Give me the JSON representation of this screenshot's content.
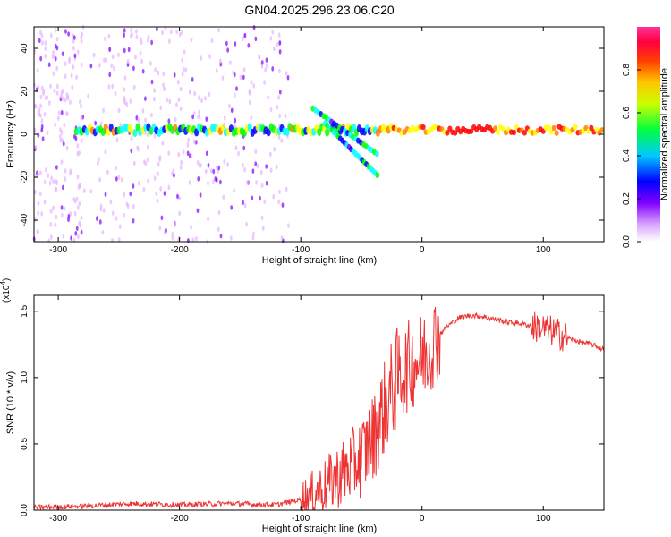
{
  "title": "GN04.2025.296.23.06.C20",
  "chart_data": [
    {
      "type": "heatmap",
      "xlabel": "Height of straight line (km)",
      "ylabel": "Frequency (Hz)",
      "xlim": [
        -320,
        150
      ],
      "ylim": [
        -50,
        50
      ],
      "xticks": [
        -300,
        -200,
        -100,
        0,
        100
      ],
      "xtick_labels": [
        "-300",
        "-200",
        "-100",
        "0",
        "100"
      ],
      "yticks": [
        -40,
        -20,
        0,
        20,
        40
      ],
      "ytick_labels": [
        "-40",
        "-20",
        "0",
        "20",
        "40"
      ],
      "colorbar": {
        "label": "Normalized spectral amplitude",
        "range": [
          0,
          1
        ],
        "ticks": [
          0,
          0.2,
          0.4,
          0.6,
          0.8
        ],
        "tick_labels": [
          "0.0",
          "0.2",
          "0.4",
          "0.6",
          "0.8"
        ],
        "colormap": [
          "#ffffff",
          "#e6b3ff",
          "#8000ff",
          "#0000ff",
          "#00ffff",
          "#00ff00",
          "#ffff00",
          "#ff8000",
          "#ff0000",
          "#ff0080"
        ]
      },
      "features": [
        {
          "name": "main band",
          "x": [
            -285,
            150
          ],
          "freq": 2
        },
        {
          "name": "descending branch 1",
          "x": [
            -90,
            -35
          ],
          "freq": [
            12,
            -10
          ]
        },
        {
          "name": "descending branch 2",
          "x": [
            -80,
            -35
          ],
          "freq": [
            5,
            -20
          ]
        },
        {
          "name": "peak region",
          "x": [
            -30,
            150
          ],
          "freq": [
            1,
            4
          ]
        }
      ]
    },
    {
      "type": "line",
      "xlabel": "Height of straight line (km)",
      "ylabel": "SNR (10 * v/v)",
      "y_multiplier": "(x10",
      "y_multiplier_exp": "4",
      "xlim": [
        -320,
        150
      ],
      "ylim": [
        0,
        1.62
      ],
      "xticks": [
        -300,
        -200,
        -100,
        0,
        100
      ],
      "xtick_labels": [
        "-300",
        "-200",
        "-100",
        "0",
        "100"
      ],
      "yticks": [
        0,
        0.5,
        1.0,
        1.5
      ],
      "ytick_labels": [
        "0.0",
        "0.5",
        "1.0",
        "1.5"
      ],
      "color": "#ee3333",
      "series": [
        {
          "x": [
            -320,
            -280,
            -240,
            -200,
            -160,
            -120,
            -100,
            -90,
            -80,
            -70,
            -60,
            -50,
            -40,
            -30,
            -20,
            -10,
            0,
            10,
            20,
            30,
            40,
            50,
            60,
            70,
            80,
            90,
            100,
            110,
            120,
            130,
            140,
            150
          ],
          "values": [
            0.02,
            0.03,
            0.05,
            0.04,
            0.05,
            0.04,
            0.08,
            0.12,
            0.18,
            0.25,
            0.32,
            0.4,
            0.55,
            0.8,
            1.0,
            1.1,
            1.15,
            1.28,
            1.38,
            1.45,
            1.47,
            1.46,
            1.44,
            1.42,
            1.41,
            1.39,
            1.37,
            1.34,
            1.3,
            1.27,
            1.25,
            1.21
          ]
        }
      ]
    }
  ]
}
